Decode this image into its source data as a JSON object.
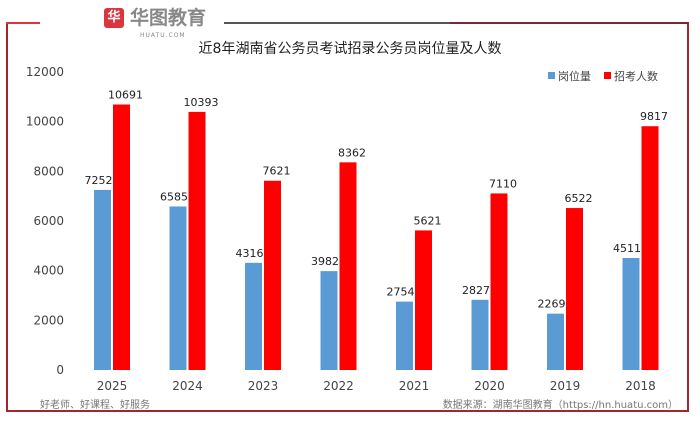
{
  "logo": {
    "name": "华图教育",
    "sub": "HUATU.COM"
  },
  "footer": {
    "slogan": "好老师、好课程、好服务",
    "source": "数据来源：湖南华图教育（https://hn.huatu.com）"
  },
  "colors": {
    "series1": "#5b9bd5",
    "series2": "#ff0000",
    "frame": "#a3262b"
  },
  "chart_data": {
    "type": "bar",
    "title": "近8年湖南省公务员考试招录公务员岗位量及人数",
    "categories": [
      "2025",
      "2024",
      "2023",
      "2022",
      "2021",
      "2020",
      "2019",
      "2018"
    ],
    "series": [
      {
        "name": "岗位量",
        "values": [
          7252,
          6585,
          4316,
          3982,
          2754,
          2827,
          2269,
          4511
        ]
      },
      {
        "name": "招考人数",
        "values": [
          10691,
          10393,
          7621,
          8362,
          5621,
          7110,
          6522,
          9817
        ]
      }
    ],
    "yticks": [
      0,
      2000,
      4000,
      6000,
      8000,
      10000,
      12000
    ],
    "ylim": [
      0,
      12000
    ],
    "legend": "top-right",
    "grid": false,
    "xlabel": "",
    "ylabel": ""
  }
}
